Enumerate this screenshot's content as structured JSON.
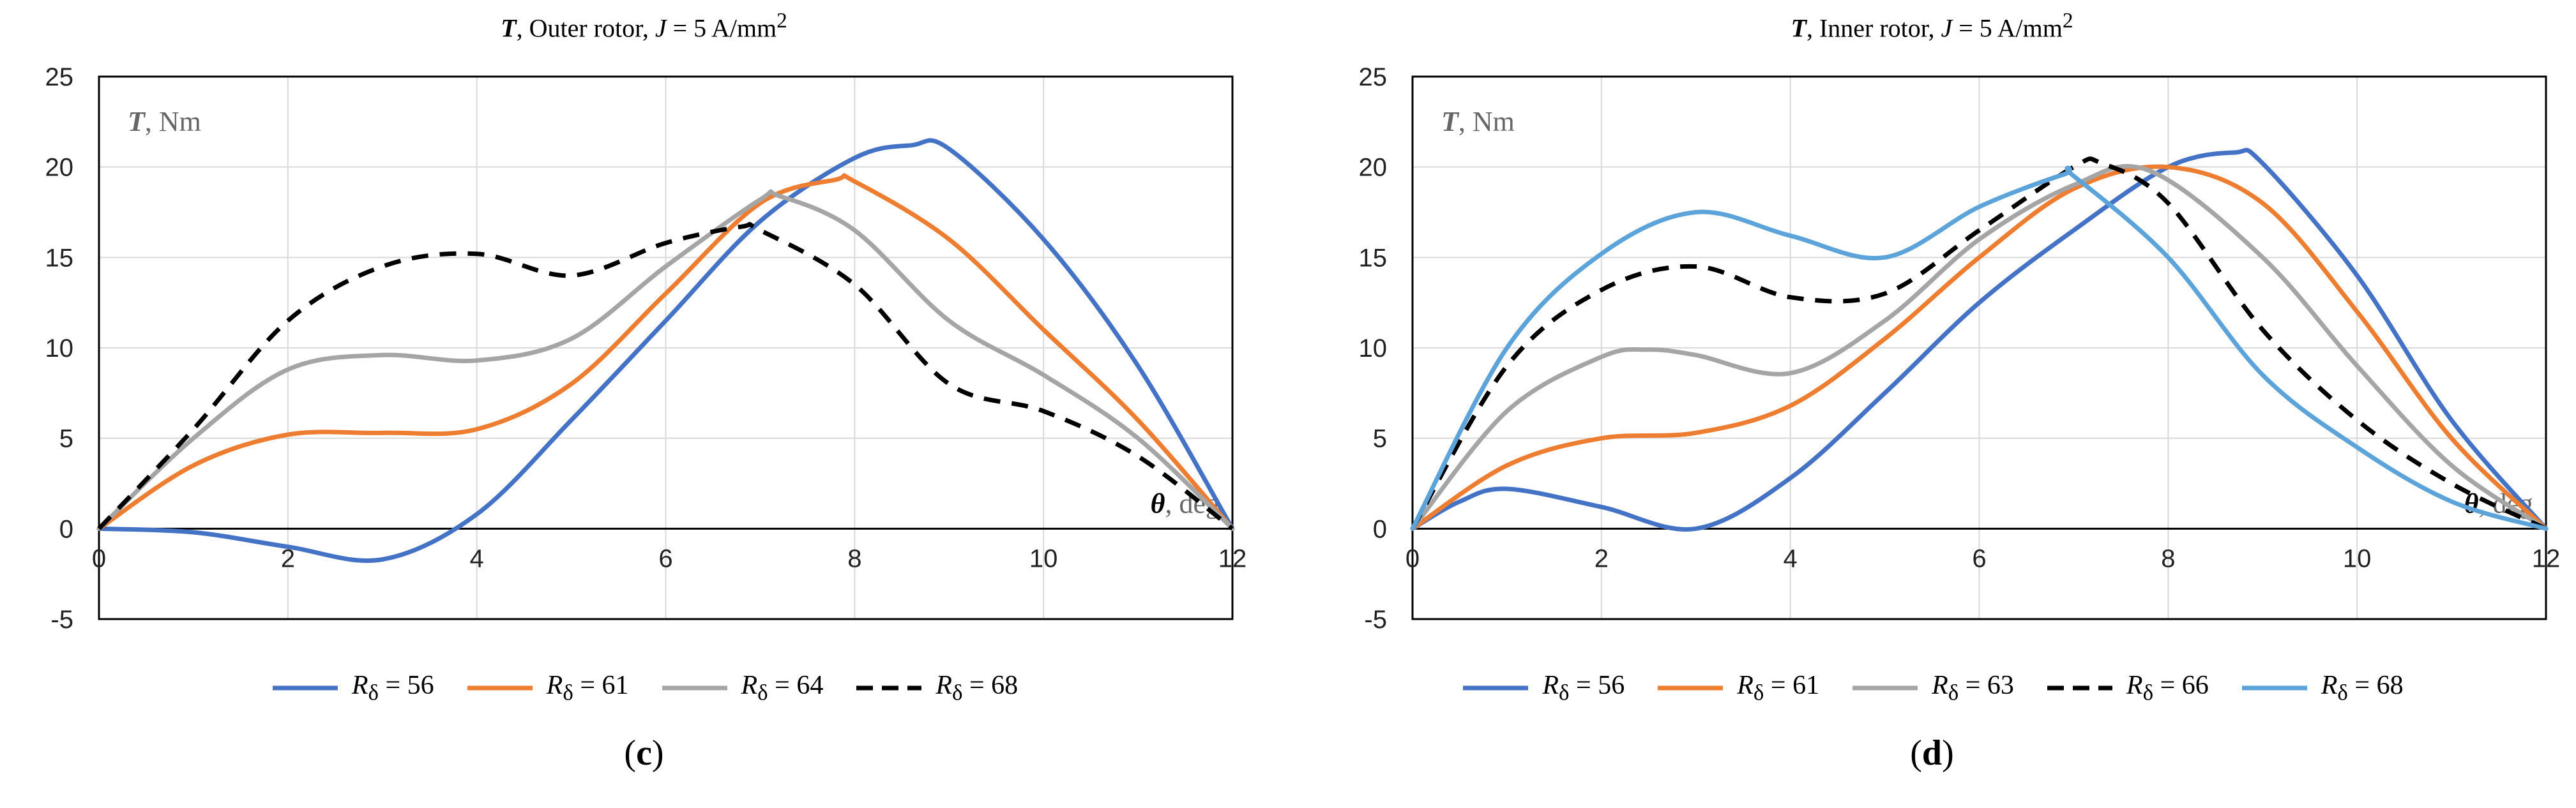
{
  "chart_data": [
    {
      "type": "line",
      "title_symbol": "T",
      "title_middle": ", Outer rotor, ",
      "title_j": "J",
      "title_tail": " = 5 A/mm",
      "title_sup": "2",
      "ylabel_symbol": "T",
      "ylabel_unit": ", Nm",
      "xlabel_symbol": "θ",
      "xlabel_unit": ", deg",
      "xlim": [
        0,
        12
      ],
      "ylim": [
        -5,
        25
      ],
      "xticks": [
        0,
        2,
        4,
        6,
        8,
        10,
        12
      ],
      "yticks": [
        -5,
        0,
        5,
        10,
        15,
        20,
        25
      ],
      "panel_label": "c",
      "series": [
        {
          "name": "R",
          "sub": "δ",
          "val": " = 56",
          "color": "#4472c4",
          "dash": false,
          "x": [
            0,
            1,
            2,
            3,
            4,
            5,
            6,
            7,
            8,
            8.6,
            9,
            10,
            11,
            12
          ],
          "y": [
            0,
            -0.2,
            -1,
            -1.7,
            0.8,
            6,
            11.5,
            17,
            20.5,
            21.2,
            21,
            16,
            9,
            0
          ]
        },
        {
          "name": "R",
          "sub": "δ",
          "val": " = 61",
          "color": "#ed7d31",
          "dash": false,
          "x": [
            0,
            1,
            2,
            3,
            4,
            5,
            6,
            7,
            7.8,
            8,
            9,
            10,
            11,
            12
          ],
          "y": [
            0,
            3.5,
            5.2,
            5.3,
            5.5,
            8,
            13,
            18,
            19.3,
            19.2,
            16,
            11,
            6,
            0
          ]
        },
        {
          "name": "R",
          "sub": "δ",
          "val": " = 64",
          "color": "#a5a5a5",
          "dash": false,
          "x": [
            0,
            1,
            2,
            3,
            4,
            5,
            6,
            7,
            7.2,
            8,
            9,
            10,
            11,
            12
          ],
          "y": [
            0,
            5,
            8.8,
            9.6,
            9.3,
            10.5,
            14.5,
            18.2,
            18.4,
            16.5,
            11.5,
            8.5,
            5,
            0
          ]
        },
        {
          "name": "R",
          "sub": "δ",
          "val": " = 68",
          "color": "#000000",
          "dash": true,
          "x": [
            0,
            1,
            2,
            3,
            4,
            5,
            6,
            6.8,
            7,
            8,
            9,
            10,
            11,
            12
          ],
          "y": [
            0,
            5.5,
            11.5,
            14.5,
            15.2,
            14,
            15.8,
            16.7,
            16.5,
            13.5,
            8,
            6.5,
            4,
            0
          ]
        }
      ]
    },
    {
      "type": "line",
      "title_symbol": "T",
      "title_middle": ", Inner rotor, ",
      "title_j": "J",
      "title_tail": " = 5 A/mm",
      "title_sup": "2",
      "ylabel_symbol": "T",
      "ylabel_unit": ", Nm",
      "xlabel_symbol": "θ",
      "xlabel_unit": ", deg",
      "xlim": [
        0,
        12
      ],
      "ylim": [
        -5,
        25
      ],
      "xticks": [
        0,
        2,
        4,
        6,
        8,
        10,
        12
      ],
      "yticks": [
        -5,
        0,
        5,
        10,
        15,
        20,
        25
      ],
      "panel_label": "d",
      "series": [
        {
          "name": "R",
          "sub": "δ",
          "val": " = 56",
          "color": "#4472c4",
          "dash": false,
          "x": [
            0,
            0.5,
            1,
            2,
            3,
            4,
            5,
            6,
            7,
            8,
            8.7,
            9,
            10,
            11,
            12
          ],
          "y": [
            0,
            1.5,
            2.2,
            1.2,
            0,
            2.8,
            7.5,
            12.5,
            16.5,
            20,
            20.8,
            20.2,
            14,
            6,
            0
          ]
        },
        {
          "name": "R",
          "sub": "δ",
          "val": " = 61",
          "color": "#ed7d31",
          "dash": false,
          "x": [
            0,
            1,
            2,
            3,
            4,
            5,
            6,
            7,
            8,
            9,
            10,
            11,
            12
          ],
          "y": [
            0,
            3.5,
            5,
            5.3,
            6.8,
            10.5,
            15,
            18.8,
            20,
            18,
            12,
            5,
            0
          ]
        },
        {
          "name": "R",
          "sub": "δ",
          "val": " = 63",
          "color": "#a5a5a5",
          "dash": false,
          "x": [
            0,
            1,
            2,
            2.5,
            3,
            4,
            5,
            6,
            7,
            7.8,
            9,
            10,
            11,
            12
          ],
          "y": [
            0,
            6.5,
            9.5,
            9.9,
            9.6,
            8.6,
            11.5,
            16,
            19,
            19.8,
            15,
            9,
            3.5,
            0
          ]
        },
        {
          "name": "R",
          "sub": "δ",
          "val": " = 66",
          "color": "#000000",
          "dash": true,
          "x": [
            0,
            1,
            2,
            3,
            4,
            5,
            6,
            7,
            7.3,
            8,
            9,
            10,
            11,
            12
          ],
          "y": [
            0,
            9,
            13.2,
            14.5,
            12.8,
            13,
            16.5,
            20,
            20.2,
            18,
            11,
            6,
            2.5,
            0
          ]
        },
        {
          "name": "R",
          "sub": "δ",
          "val": " = 68",
          "color": "#5ba3d9",
          "dash": false,
          "x": [
            0,
            1,
            2,
            3,
            4,
            5,
            6,
            6.9,
            7,
            8,
            9,
            10,
            11,
            12
          ],
          "y": [
            0,
            10,
            15.2,
            17.5,
            16.2,
            15,
            17.8,
            19.6,
            19.5,
            15,
            8.5,
            4.5,
            1.5,
            0
          ]
        }
      ]
    }
  ]
}
